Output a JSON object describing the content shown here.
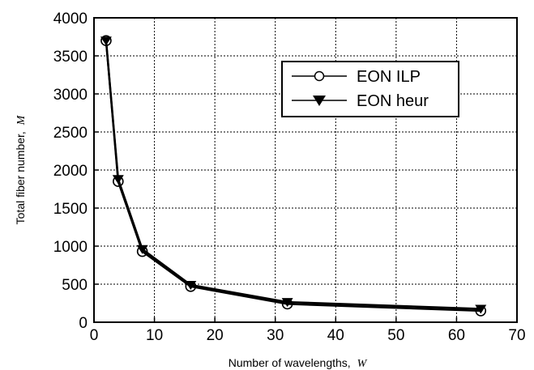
{
  "chart_data": {
    "type": "line",
    "xlabel": "Number of wavelengths,",
    "xlabel_var": "W",
    "ylabel": "Total fiber number,",
    "ylabel_var": "M",
    "xlim": [
      0,
      70
    ],
    "ylim": [
      0,
      4000
    ],
    "xticks": [
      0,
      10,
      20,
      30,
      40,
      50,
      60,
      70
    ],
    "yticks": [
      0,
      500,
      1000,
      1500,
      2000,
      2500,
      3000,
      3500,
      4000
    ],
    "grid": true,
    "legend_position": "top-right",
    "x": [
      2,
      4,
      8,
      16,
      32,
      64
    ],
    "series": [
      {
        "name": "EON ILP",
        "marker": "circle",
        "color": "#000000",
        "values": [
          3700,
          1850,
          930,
          470,
          240,
          150
        ]
      },
      {
        "name": "EON heur",
        "marker": "triangle-down",
        "color": "#000000",
        "values": [
          3700,
          1880,
          960,
          490,
          265,
          175
        ]
      }
    ]
  }
}
